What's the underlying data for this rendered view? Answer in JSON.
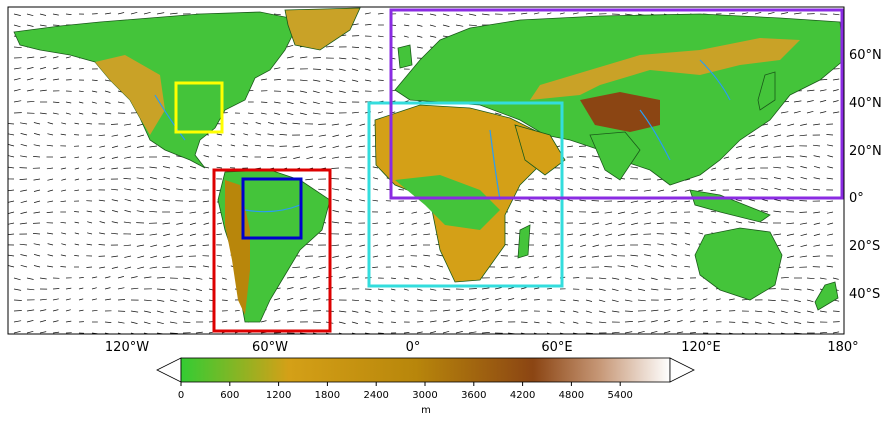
{
  "map": {
    "longitude_labels": [
      "120°W",
      "60°W",
      "0°",
      "60°E",
      "120°E",
      "180°"
    ],
    "latitude_labels": [
      "60°N",
      "40°N",
      "20°N",
      "0°",
      "20°S",
      "40°S"
    ],
    "regions": [
      {
        "name": "",
        "color": "#ffff00"
      },
      {
        "name": "",
        "color": "#dd0000"
      },
      {
        "name": "",
        "color": "#0000cc"
      },
      {
        "name": "",
        "color": "#33dddd"
      },
      {
        "name": "",
        "color": "#8a2be2"
      }
    ]
  },
  "colorbar": {
    "ticks": [
      "0",
      "600",
      "1200",
      "1800",
      "2400",
      "3000",
      "3600",
      "4200",
      "4800",
      "5400"
    ],
    "unit": "m",
    "colors": [
      "#33cc33",
      "#d4a017",
      "#b8860b",
      "#8b4513",
      "#c89a7a",
      "#ffffff"
    ]
  }
}
